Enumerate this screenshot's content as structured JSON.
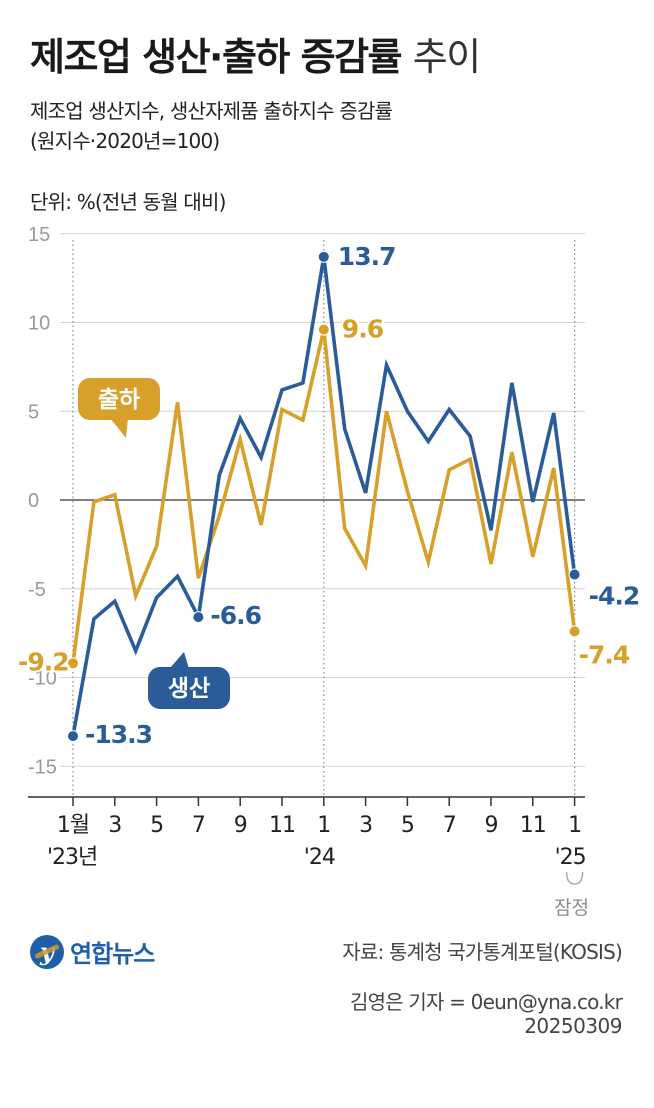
{
  "header": {
    "title_bold": "제조업 생산·출하 증감률",
    "title_light": "추이",
    "subtitle_line1": "제조업 생산지수, 생산자제품 출하지수 증감률",
    "subtitle_line2": "(원지수·2020년=100)",
    "unit": "단위: %(전년 동월 대비)"
  },
  "colors": {
    "production": "#2a5c9a",
    "shipment": "#d6a02b",
    "grid": "#d4d4d4",
    "axis": "#333333",
    "tick_text": "#9a9a9a"
  },
  "chart_data": {
    "type": "line",
    "title": "제조업 생산·출하 증감률 추이",
    "ylim": [
      -15,
      15
    ],
    "yticks": [
      "15",
      "10",
      "5",
      "0",
      "-5",
      "-10",
      "-15"
    ],
    "ytick_values": [
      15,
      10,
      5,
      0,
      -5,
      -10,
      -15
    ],
    "x": [
      "2023-01",
      "2023-02",
      "2023-03",
      "2023-04",
      "2023-05",
      "2023-06",
      "2023-07",
      "2023-08",
      "2023-09",
      "2023-10",
      "2023-11",
      "2023-12",
      "2024-01",
      "2024-02",
      "2024-03",
      "2024-04",
      "2024-05",
      "2024-06",
      "2024-07",
      "2024-08",
      "2024-09",
      "2024-10",
      "2024-11",
      "2024-12",
      "2025-01"
    ],
    "xtick_labels": [
      {
        "index": 0,
        "label": "1월"
      },
      {
        "index": 2,
        "label": "3"
      },
      {
        "index": 4,
        "label": "5"
      },
      {
        "index": 6,
        "label": "7"
      },
      {
        "index": 8,
        "label": "9"
      },
      {
        "index": 10,
        "label": "11"
      },
      {
        "index": 12,
        "label": "1"
      },
      {
        "index": 14,
        "label": "3"
      },
      {
        "index": 16,
        "label": "5"
      },
      {
        "index": 18,
        "label": "7"
      },
      {
        "index": 20,
        "label": "9"
      },
      {
        "index": 22,
        "label": "11"
      },
      {
        "index": 24,
        "label": "1"
      }
    ],
    "year_labels": [
      {
        "index": 0,
        "label": "'23년"
      },
      {
        "index": 12,
        "label": "'24"
      },
      {
        "index": 24,
        "label": "'25"
      }
    ],
    "preliminary_note": "잠정",
    "series": [
      {
        "name": "출하",
        "key": "shipment",
        "values": [
          -9.2,
          -0.1,
          0.3,
          -5.4,
          -2.6,
          5.5,
          -4.4,
          -0.9,
          3.4,
          -1.4,
          5.1,
          4.5,
          9.6,
          -1.6,
          -3.7,
          5.0,
          0.5,
          -3.5,
          1.7,
          2.3,
          -3.6,
          2.7,
          -3.2,
          1.8,
          -7.4
        ],
        "labeled_points": [
          {
            "index": 0,
            "label": "-9.2"
          },
          {
            "index": 12,
            "label": "9.6"
          },
          {
            "index": 24,
            "label": "-7.4"
          }
        ]
      },
      {
        "name": "생산",
        "key": "production",
        "values": [
          -13.3,
          -6.7,
          -5.7,
          -8.5,
          -5.5,
          -4.3,
          -6.6,
          1.4,
          4.6,
          2.4,
          6.2,
          6.6,
          13.7,
          4.0,
          0.4,
          7.6,
          5.0,
          3.3,
          5.1,
          3.6,
          -1.7,
          6.6,
          -0.1,
          4.9,
          -4.2
        ],
        "labeled_points": [
          {
            "index": 0,
            "label": "-13.3"
          },
          {
            "index": 6,
            "label": "-6.6"
          },
          {
            "index": 12,
            "label": "13.7"
          },
          {
            "index": 24,
            "label": "-4.2"
          }
        ]
      }
    ]
  },
  "footer": {
    "logo_mark": "y",
    "logo_text": "연합뉴스",
    "source": "자료: 통계청 국가통계포털(KOSIS)",
    "author": "김영은 기자 = 0eun@yna.co.kr",
    "date": "20250309"
  }
}
